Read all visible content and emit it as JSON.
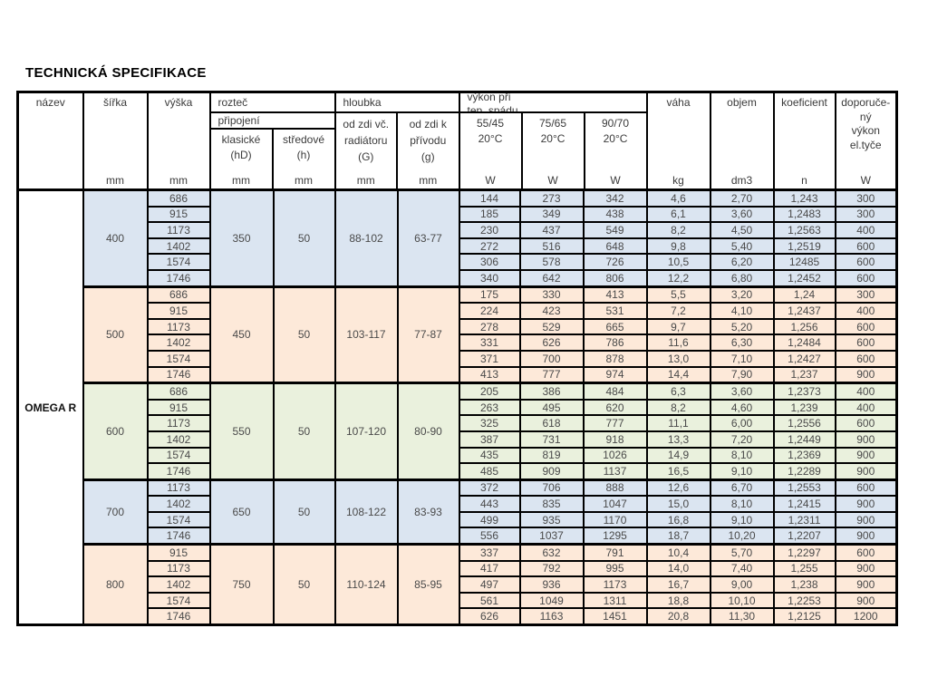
{
  "title": "TECHNICKÁ SPECIFIKACE",
  "product_name": "OMEGA R",
  "colors": {
    "white": "#ffffff",
    "blue": "#dbe5f1",
    "peach": "#fde9d9",
    "green": "#eaf1dd",
    "border": "#000000",
    "text": "#4a4a4a"
  },
  "header": {
    "nazev": "název",
    "sirka": "šířka",
    "vyska": "výška",
    "roztec": "rozteč",
    "pripojeni": "připojení",
    "klasicke_l1": "klasické",
    "klasicke_l2": "(hD)",
    "stredove_l1": "středové",
    "stredove_l2": "(h)",
    "hloubka": "hloubka",
    "od_zdi_vc_l1": "od zdi  vč.",
    "od_zdi_vc_l2": "radiátoru",
    "od_zdi_vc_l3": "(G)",
    "od_zdi_k_l1": "od zdi  k",
    "od_zdi_k_l2": "přívodu",
    "od_zdi_k_l3": "(g)",
    "vykon_l1": "výkon při",
    "vykon_l2": "tep. spádu",
    "t5545": "55/45",
    "t7565": "75/65",
    "t9070": "90/70",
    "temp": "20°C",
    "vaha": "váha",
    "objem": "objem",
    "koeficient": "koeficient",
    "dop_l1": "doporuče-",
    "dop_l2": "ný",
    "dop_l3": "výkon",
    "dop_l4": "el.tyče",
    "unit_mm": "mm",
    "unit_w": "W",
    "unit_kg": "kg",
    "unit_dm3": "dm3",
    "unit_n": "n"
  },
  "groups": [
    {
      "sirka": "400",
      "color": "blue",
      "klasicke": "350",
      "stredove": "50",
      "hloubka_G": "88-102",
      "hloubka_g2": "63-77",
      "rows": [
        {
          "vyska": "686",
          "w5545": "144",
          "w7565": "273",
          "w9070": "342",
          "vaha": "4,6",
          "objem": "2,70",
          "koef": "1,243",
          "el": "300"
        },
        {
          "vyska": "915",
          "w5545": "185",
          "w7565": "349",
          "w9070": "438",
          "vaha": "6,1",
          "objem": "3,60",
          "koef": "1,2483",
          "el": "300"
        },
        {
          "vyska": "1173",
          "w5545": "230",
          "w7565": "437",
          "w9070": "549",
          "vaha": "8,2",
          "objem": "4,50",
          "koef": "1,2563",
          "el": "400"
        },
        {
          "vyska": "1402",
          "w5545": "272",
          "w7565": "516",
          "w9070": "648",
          "vaha": "9,8",
          "objem": "5,40",
          "koef": "1,2519",
          "el": "600"
        },
        {
          "vyska": "1574",
          "w5545": "306",
          "w7565": "578",
          "w9070": "726",
          "vaha": "10,5",
          "objem": "6,20",
          "koef": "12485",
          "el": "600"
        },
        {
          "vyska": "1746",
          "w5545": "340",
          "w7565": "642",
          "w9070": "806",
          "vaha": "12,2",
          "objem": "6,80",
          "koef": "1,2452",
          "el": "600"
        }
      ]
    },
    {
      "sirka": "500",
      "color": "peach",
      "klasicke": "450",
      "stredove": "50",
      "hloubka_G": "103-117",
      "hloubka_g2": "77-87",
      "rows": [
        {
          "vyska": "686",
          "w5545": "175",
          "w7565": "330",
          "w9070": "413",
          "vaha": "5,5",
          "objem": "3,20",
          "koef": "1,24",
          "el": "300"
        },
        {
          "vyska": "915",
          "w5545": "224",
          "w7565": "423",
          "w9070": "531",
          "vaha": "7,2",
          "objem": "4,10",
          "koef": "1,2437",
          "el": "400"
        },
        {
          "vyska": "1173",
          "w5545": "278",
          "w7565": "529",
          "w9070": "665",
          "vaha": "9,7",
          "objem": "5,20",
          "koef": "1,256",
          "el": "600"
        },
        {
          "vyska": "1402",
          "w5545": "331",
          "w7565": "626",
          "w9070": "786",
          "vaha": "11,6",
          "objem": "6,30",
          "koef": "1,2484",
          "el": "600"
        },
        {
          "vyska": "1574",
          "w5545": "371",
          "w7565": "700",
          "w9070": "878",
          "vaha": "13,0",
          "objem": "7,10",
          "koef": "1,2427",
          "el": "600"
        },
        {
          "vyska": "1746",
          "w5545": "413",
          "w7565": "777",
          "w9070": "974",
          "vaha": "14,4",
          "objem": "7,90",
          "koef": "1,237",
          "el": "900"
        }
      ]
    },
    {
      "sirka": "600",
      "color": "green",
      "klasicke": "550",
      "stredove": "50",
      "hloubka_G": "107-120",
      "hloubka_g2": "80-90",
      "rows": [
        {
          "vyska": "686",
          "w5545": "205",
          "w7565": "386",
          "w9070": "484",
          "vaha": "6,3",
          "objem": "3,60",
          "koef": "1,2373",
          "el": "400"
        },
        {
          "vyska": "915",
          "w5545": "263",
          "w7565": "495",
          "w9070": "620",
          "vaha": "8,2",
          "objem": "4,60",
          "koef": "1,239",
          "el": "400"
        },
        {
          "vyska": "1173",
          "w5545": "325",
          "w7565": "618",
          "w9070": "777",
          "vaha": "11,1",
          "objem": "6,00",
          "koef": "1,2556",
          "el": "600"
        },
        {
          "vyska": "1402",
          "w5545": "387",
          "w7565": "731",
          "w9070": "918",
          "vaha": "13,3",
          "objem": "7,20",
          "koef": "1,2449",
          "el": "900"
        },
        {
          "vyska": "1574",
          "w5545": "435",
          "w7565": "819",
          "w9070": "1026",
          "vaha": "14,9",
          "objem": "8,10",
          "koef": "1,2369",
          "el": "900"
        },
        {
          "vyska": "1746",
          "w5545": "485",
          "w7565": "909",
          "w9070": "1137",
          "vaha": "16,5",
          "objem": "9,10",
          "koef": "1,2289",
          "el": "900"
        }
      ]
    },
    {
      "sirka": "700",
      "color": "blue",
      "klasicke": "650",
      "stredove": "50",
      "hloubka_G": "108-122",
      "hloubka_g2": "83-93",
      "rows": [
        {
          "vyska": "1173",
          "w5545": "372",
          "w7565": "706",
          "w9070": "888",
          "vaha": "12,6",
          "objem": "6,70",
          "koef": "1,2553",
          "el": "600"
        },
        {
          "vyska": "1402",
          "w5545": "443",
          "w7565": "835",
          "w9070": "1047",
          "vaha": "15,0",
          "objem": "8,10",
          "koef": "1,2415",
          "el": "900"
        },
        {
          "vyska": "1574",
          "w5545": "499",
          "w7565": "935",
          "w9070": "1170",
          "vaha": "16,8",
          "objem": "9,10",
          "koef": "1,2311",
          "el": "900"
        },
        {
          "vyska": "1746",
          "w5545": "556",
          "w7565": "1037",
          "w9070": "1295",
          "vaha": "18,7",
          "objem": "10,20",
          "koef": "1,2207",
          "el": "900"
        }
      ]
    },
    {
      "sirka": "800",
      "color": "peach",
      "klasicke": "750",
      "stredove": "50",
      "hloubka_G": "110-124",
      "hloubka_g2": "85-95",
      "rows": [
        {
          "vyska": "915",
          "w5545": "337",
          "w7565": "632",
          "w9070": "791",
          "vaha": "10,4",
          "objem": "5,70",
          "koef": "1,2297",
          "el": "600"
        },
        {
          "vyska": "1173",
          "w5545": "417",
          "w7565": "792",
          "w9070": "995",
          "vaha": "14,0",
          "objem": "7,40",
          "koef": "1,255",
          "el": "900"
        },
        {
          "vyska": "1402",
          "w5545": "497",
          "w7565": "936",
          "w9070": "1173",
          "vaha": "16,7",
          "objem": "9,00",
          "koef": "1,238",
          "el": "900"
        },
        {
          "vyska": "1574",
          "w5545": "561",
          "w7565": "1049",
          "w9070": "1311",
          "vaha": "18,8",
          "objem": "10,10",
          "koef": "1,2253",
          "el": "900"
        },
        {
          "vyska": "1746",
          "w5545": "626",
          "w7565": "1163",
          "w9070": "1451",
          "vaha": "20,8",
          "objem": "11,30",
          "koef": "1,2125",
          "el": "1200"
        }
      ]
    }
  ]
}
